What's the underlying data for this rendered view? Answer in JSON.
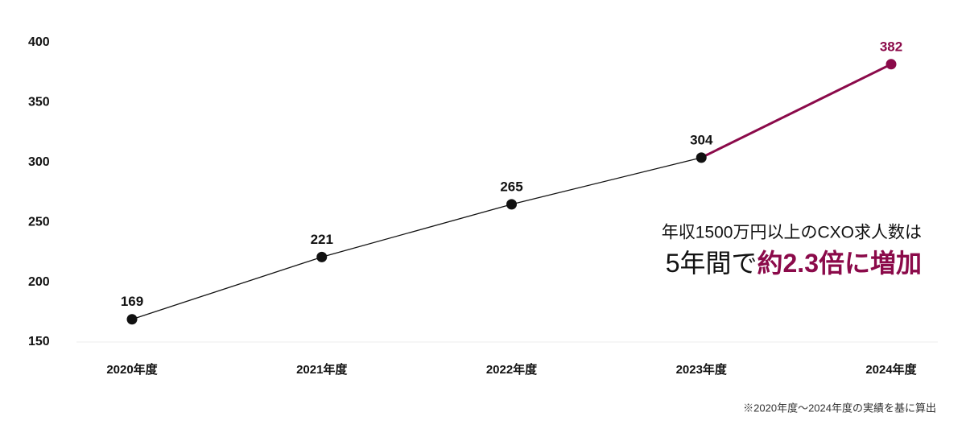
{
  "chart_data": {
    "type": "line",
    "categories": [
      "2020年度",
      "2021年度",
      "2022年度",
      "2023年度",
      "2024年度"
    ],
    "values": [
      169,
      221,
      265,
      304,
      382
    ],
    "color": "#111111",
    "highlight": {
      "index": 4,
      "color": "#8b0a4a"
    },
    "ylim": [
      150,
      400
    ],
    "yticks": [
      150,
      200,
      250,
      300,
      350,
      400
    ],
    "grid": false,
    "annotation": {
      "line1": "年収1500万円以上のCXO求人数は",
      "line2_prefix": "5年間で",
      "line2_emphasis": "約2.3倍に増加"
    },
    "footnote": "※2020年度〜2024年度の実績を基に算出"
  }
}
